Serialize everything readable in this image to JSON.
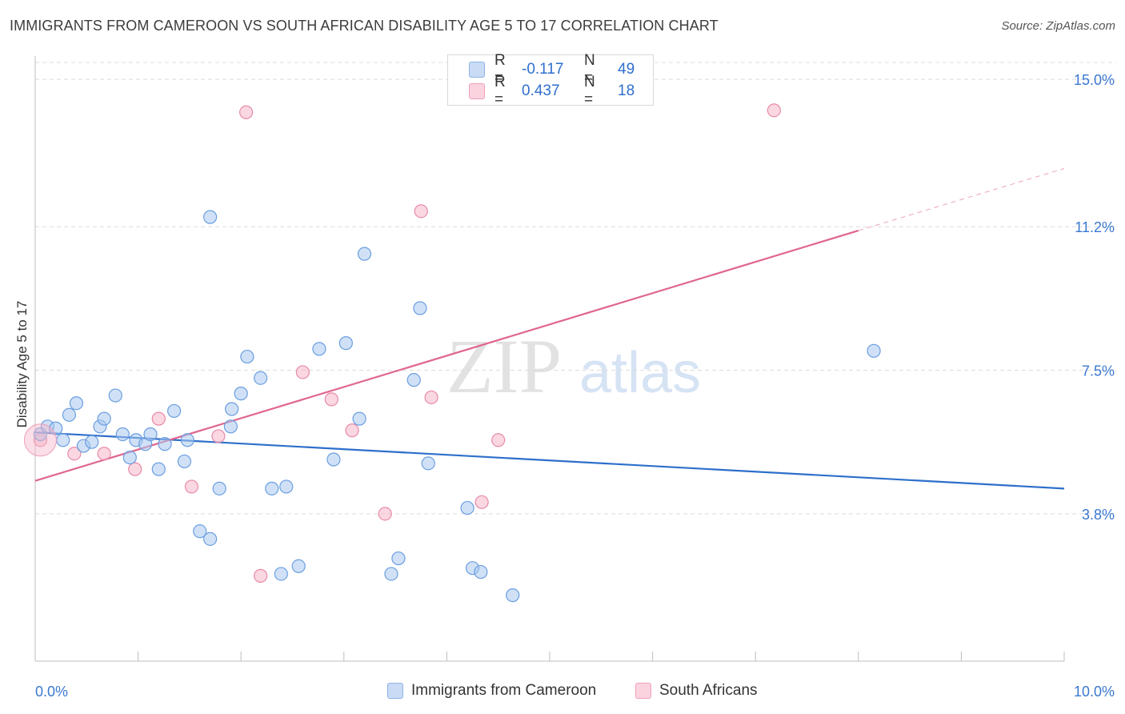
{
  "header": {
    "title": "IMMIGRANTS FROM CAMEROON VS SOUTH AFRICAN DISABILITY AGE 5 TO 17 CORRELATION CHART",
    "source": "Source: ZipAtlas.com"
  },
  "watermark": {
    "zip": "ZIP",
    "atlas": "atlas"
  },
  "legend": {
    "rows": [
      {
        "r_label": "R =",
        "r_value": "-0.117",
        "n_label": "N =",
        "n_value": "49",
        "color": "#aac8f0"
      },
      {
        "r_label": "R =",
        "r_value": "0.437",
        "n_label": "N =",
        "n_value": "18",
        "color": "#f6b6c9"
      }
    ]
  },
  "bottom_legend": {
    "items": [
      {
        "label": "Immigrants from Cameroon",
        "color": "#aac8f0"
      },
      {
        "label": "South Africans",
        "color": "#f6b6c9"
      }
    ]
  },
  "chart_data": {
    "type": "scatter",
    "title": "IMMIGRANTS FROM CAMEROON VS SOUTH AFRICAN DISABILITY AGE 5 TO 17 CORRELATION CHART",
    "xlabel": "",
    "ylabel": "Disability Age 5 to 17",
    "xlim": [
      0,
      10
    ],
    "ylim": [
      0,
      15.6
    ],
    "x_tick_labels": [
      "0.0%",
      "10.0%"
    ],
    "y_ticks": [
      3.8,
      7.5,
      11.2,
      15.0
    ],
    "y_tick_labels": [
      "3.8%",
      "7.5%",
      "11.2%",
      "15.0%"
    ],
    "grid": true,
    "legend_placement": "top-center",
    "series": [
      {
        "name": "Immigrants from Cameroon",
        "color": "#aac8f0",
        "stroke": "#6a9ee0",
        "line_color": "#2d6fcb",
        "trend": {
          "x": [
            0,
            10
          ],
          "y": [
            5.9,
            4.45
          ]
        },
        "points": [
          [
            0.05,
            5.85
          ],
          [
            0.12,
            6.05
          ],
          [
            0.2,
            6.0
          ],
          [
            0.27,
            5.7
          ],
          [
            0.33,
            6.35
          ],
          [
            0.4,
            6.65
          ],
          [
            0.47,
            5.55
          ],
          [
            0.55,
            5.65
          ],
          [
            0.63,
            6.05
          ],
          [
            0.67,
            6.25
          ],
          [
            0.78,
            6.85
          ],
          [
            0.85,
            5.85
          ],
          [
            0.92,
            5.25
          ],
          [
            0.98,
            5.7
          ],
          [
            1.07,
            5.6
          ],
          [
            1.12,
            5.85
          ],
          [
            1.2,
            4.95
          ],
          [
            1.26,
            5.6
          ],
          [
            1.35,
            6.45
          ],
          [
            1.45,
            5.15
          ],
          [
            1.48,
            5.7
          ],
          [
            1.6,
            3.35
          ],
          [
            1.7,
            3.15
          ],
          [
            1.7,
            11.45
          ],
          [
            1.79,
            4.45
          ],
          [
            1.9,
            6.05
          ],
          [
            1.91,
            6.5
          ],
          [
            2.0,
            6.9
          ],
          [
            2.06,
            7.85
          ],
          [
            2.19,
            7.3
          ],
          [
            2.3,
            4.45
          ],
          [
            2.39,
            2.25
          ],
          [
            2.44,
            4.5
          ],
          [
            2.56,
            2.45
          ],
          [
            2.76,
            8.05
          ],
          [
            2.9,
            5.2
          ],
          [
            3.02,
            8.2
          ],
          [
            3.15,
            6.25
          ],
          [
            3.2,
            10.5
          ],
          [
            3.46,
            2.25
          ],
          [
            3.53,
            2.65
          ],
          [
            3.68,
            7.25
          ],
          [
            3.74,
            9.1
          ],
          [
            3.82,
            5.1
          ],
          [
            4.2,
            3.95
          ],
          [
            4.25,
            2.4
          ],
          [
            4.33,
            2.3
          ],
          [
            4.64,
            1.7
          ],
          [
            8.15,
            8.0
          ]
        ]
      },
      {
        "name": "South Africans",
        "color": "#f6b6c9",
        "stroke": "#e88aa8",
        "line_color": "#e0668f",
        "trend": {
          "x": [
            0,
            8.0
          ],
          "y": [
            4.65,
            11.1
          ]
        },
        "trend_extension": {
          "x": [
            8.0,
            10.0
          ],
          "y": [
            11.1,
            12.7
          ]
        },
        "points": [
          [
            0.05,
            5.7
          ],
          [
            0.38,
            5.35
          ],
          [
            0.67,
            5.35
          ],
          [
            0.97,
            4.95
          ],
          [
            1.2,
            6.25
          ],
          [
            1.52,
            4.5
          ],
          [
            1.78,
            5.8
          ],
          [
            2.05,
            14.15
          ],
          [
            2.19,
            2.2
          ],
          [
            2.6,
            7.45
          ],
          [
            2.88,
            6.75
          ],
          [
            3.08,
            5.95
          ],
          [
            3.4,
            3.8
          ],
          [
            3.75,
            11.6
          ],
          [
            3.85,
            6.8
          ],
          [
            4.34,
            4.1
          ],
          [
            4.5,
            5.7
          ],
          [
            7.18,
            14.2
          ]
        ]
      }
    ]
  }
}
